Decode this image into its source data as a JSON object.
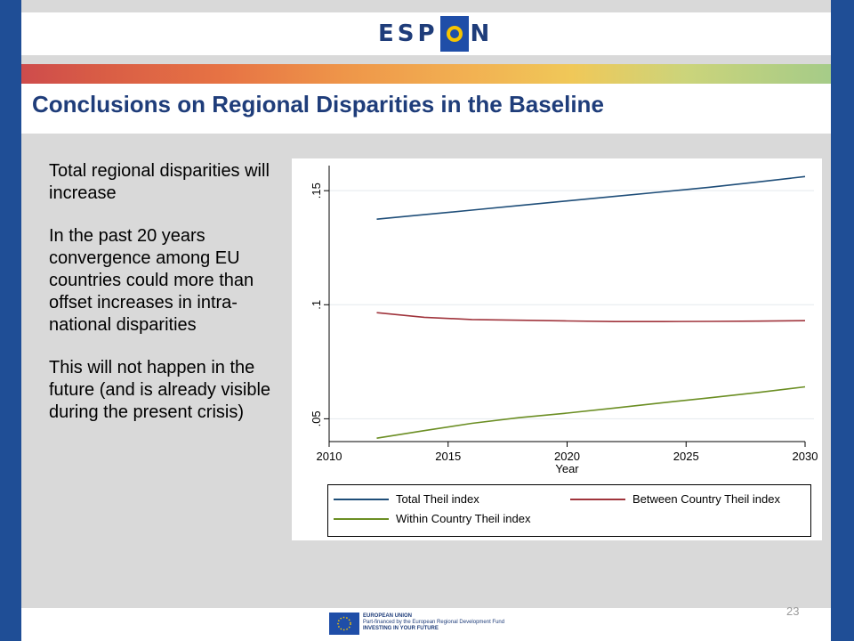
{
  "slide": {
    "logo_left": "ESP",
    "logo_right": "N",
    "title": "Conclusions on Regional Disparities in the Baseline",
    "bullets": [
      "Total regional disparities will increase",
      "In the past 20 years convergence among EU countries could more than offset increases in intra-national disparities",
      "This will not happen in the future (and is already visible during the present crisis)"
    ],
    "page_number": "23",
    "footer_eu_line1": "EUROPEAN UNION",
    "footer_eu_line2": "Part-financed by the European Regional Development Fund",
    "footer_eu_line3": "INVESTING IN YOUR FUTURE",
    "colors": {
      "title": "#1f3d7a",
      "side_bars": "#1f4e96",
      "background": "#d9d9d9"
    }
  },
  "chart_data": {
    "type": "line",
    "title": "",
    "xlabel": "Year",
    "ylabel": "",
    "x_ticks": [
      2010,
      2015,
      2020,
      2025,
      2030
    ],
    "y_ticks": [
      0.05,
      0.1,
      0.15
    ],
    "y_tick_labels": [
      ".05",
      ".1",
      ".15"
    ],
    "xlim": [
      2010,
      2030
    ],
    "ylim": [
      0.04,
      0.161
    ],
    "grid": true,
    "legend_position": "bottom",
    "x": [
      2012,
      2014,
      2016,
      2018,
      2020,
      2022,
      2024,
      2026,
      2028,
      2030
    ],
    "series": [
      {
        "name": "Total Theil index",
        "color": "#1f4e79",
        "values": [
          0.1375,
          0.1395,
          0.1415,
          0.1435,
          0.1455,
          0.1475,
          0.1495,
          0.1515,
          0.1538,
          0.1562
        ]
      },
      {
        "name": "Between Country Theil index",
        "color": "#a0343c",
        "values": [
          0.0965,
          0.0945,
          0.0935,
          0.0932,
          0.0929,
          0.0926,
          0.0926,
          0.0927,
          0.0928,
          0.093
        ]
      },
      {
        "name": "Within Country Theil index",
        "color": "#6b8e23",
        "values": [
          0.0415,
          0.0448,
          0.048,
          0.0505,
          0.0525,
          0.0547,
          0.057,
          0.0592,
          0.0615,
          0.064
        ]
      }
    ]
  }
}
